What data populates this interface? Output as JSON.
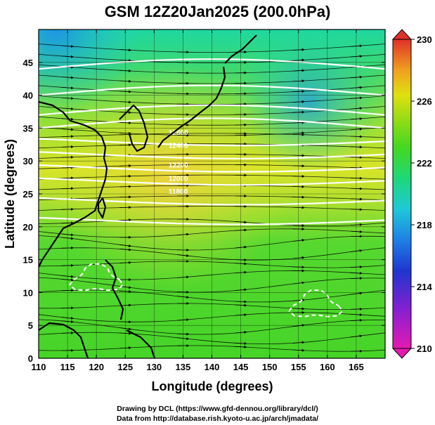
{
  "title": "GSM 12Z20Jan2025 (200.0hPa)",
  "xlabel": "Longitude (degrees)",
  "ylabel": "Latitude  (degrees)",
  "credit_line1": "Drawing by DCL (https://www.gfd-dennou.org/library/dcl/)",
  "credit_line2": "Data from http://database.rish.kyoto-u.ac.jp/arch/jmadata/",
  "map": {
    "lon_range": [
      110,
      170
    ],
    "lat_range": [
      0,
      50
    ],
    "lon_ticks": [
      110,
      115,
      120,
      125,
      130,
      135,
      140,
      145,
      150,
      155,
      160,
      165
    ],
    "lat_ticks": [
      0,
      5,
      10,
      15,
      20,
      25,
      30,
      35,
      40,
      45
    ],
    "grid_step_deg": 5,
    "field": "temperature (K) with streamlines and geopotential height contours",
    "contour_labels": [
      "12600",
      "12400",
      "12200",
      "12000",
      "11800"
    ]
  },
  "colorbar": {
    "ticks": [
      210,
      214,
      218,
      222,
      226,
      230
    ],
    "range": [
      210,
      230
    ],
    "colors": [
      "#e41ab0",
      "#7a1fd6",
      "#1e2fcf",
      "#1e7fe6",
      "#1ec8d8",
      "#1ed878",
      "#3ed820",
      "#8edc14",
      "#d8e010",
      "#f0b020",
      "#f06a20",
      "#e0302a"
    ]
  }
}
